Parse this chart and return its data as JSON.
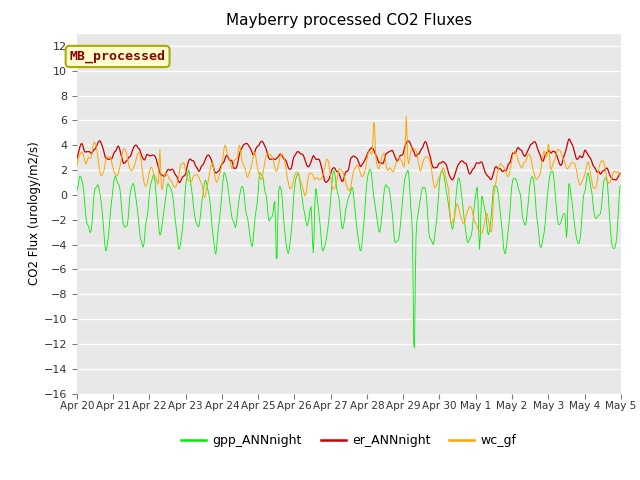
{
  "title": "Mayberry processed CO2 Fluxes",
  "ylabel": "CO2 Flux (urology/m2/s)",
  "ylim": [
    -16,
    13
  ],
  "yticks": [
    -16,
    -14,
    -12,
    -10,
    -8,
    -6,
    -4,
    -2,
    0,
    2,
    4,
    6,
    8,
    10,
    12
  ],
  "n_days": 15,
  "pts_per_day": 48,
  "colors": {
    "gpp": "#00EE00",
    "er": "#CC0000",
    "wc": "#FFA500"
  },
  "lw": {
    "gpp": 0.6,
    "er": 0.9,
    "wc": 0.7
  },
  "legend_labels": [
    "gpp_ANNnight",
    "er_ANNnight",
    "wc_gf"
  ],
  "inset_label": "MB_processed",
  "inset_text_color": "#8B0000",
  "inset_bg": "#FFFFCC",
  "inset_edge": "#AAAA00",
  "plot_bg": "#E8E8E8",
  "fig_bg": "#FFFFFF",
  "grid_color": "#FFFFFF",
  "tick_color": "#777777"
}
